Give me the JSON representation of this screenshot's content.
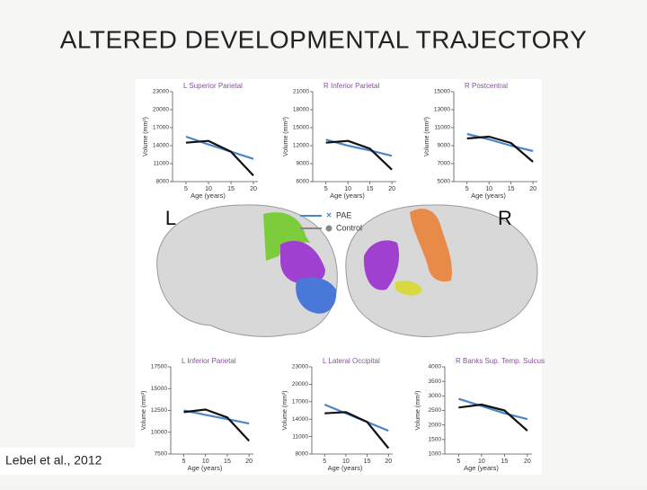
{
  "slide": {
    "title": "ALTERED DEVELOPMENTAL TRAJECTORY",
    "caption": "Lebel et al., 2012"
  },
  "figure": {
    "left_label": "L",
    "right_label": "R",
    "legend": [
      {
        "label": "PAE",
        "color": "#4a86c8"
      },
      {
        "label": "Control",
        "color": "#888888"
      }
    ],
    "panels": [
      {
        "title": "L Superior Parietal",
        "xlabel": "Age (years)",
        "ylabel": "Volume (mm³)",
        "xlim": [
          2,
          21
        ],
        "xticks": [
          5,
          10,
          15,
          20
        ],
        "ylim": [
          8000,
          23000
        ],
        "yticks": [
          8000,
          11000,
          14000,
          17000,
          20000,
          23000
        ],
        "x": [
          5,
          10,
          15,
          20
        ],
        "series": [
          {
            "color": "#4a86c8",
            "values": [
              15500,
              14200,
              13000,
              11800
            ]
          },
          {
            "color": "#111111",
            "values": [
              14500,
              14800,
              13000,
              9000
            ]
          }
        ]
      },
      {
        "title": "R Inferior Parietal",
        "xlabel": "Age (years)",
        "ylabel": "Volume (mm³)",
        "xlim": [
          2,
          21
        ],
        "xticks": [
          5,
          10,
          15,
          20
        ],
        "ylim": [
          6000,
          21000
        ],
        "yticks": [
          6000,
          9000,
          12000,
          15000,
          18000,
          21000
        ],
        "x": [
          5,
          10,
          15,
          20
        ],
        "series": [
          {
            "color": "#4a86c8",
            "values": [
              13000,
              12000,
              11200,
              10300
            ]
          },
          {
            "color": "#111111",
            "values": [
              12500,
              12800,
              11500,
              8000
            ]
          }
        ]
      },
      {
        "title": "R Postcentral",
        "xlabel": "Age (years)",
        "ylabel": "Volume (mm³)",
        "xlim": [
          2,
          21
        ],
        "xticks": [
          5,
          10,
          15,
          20
        ],
        "ylim": [
          5000,
          15000
        ],
        "yticks": [
          5000,
          7000,
          9000,
          11000,
          13000,
          15000
        ],
        "x": [
          5,
          10,
          15,
          20
        ],
        "series": [
          {
            "color": "#4a86c8",
            "values": [
              10300,
              9700,
              9000,
              8400
            ]
          },
          {
            "color": "#111111",
            "values": [
              9800,
              10000,
              9300,
              7200
            ]
          }
        ]
      },
      {
        "title": "L Inferior Parietal",
        "xlabel": "Age (years)",
        "ylabel": "Volume (mm³)",
        "xlim": [
          2,
          21
        ],
        "xticks": [
          5,
          10,
          15,
          20
        ],
        "ylim": [
          7500,
          17500
        ],
        "yticks": [
          7500,
          10000,
          12500,
          15000,
          17500
        ],
        "x": [
          5,
          10,
          15,
          20
        ],
        "series": [
          {
            "color": "#4a86c8",
            "values": [
              12500,
              12000,
              11500,
              11000
            ]
          },
          {
            "color": "#111111",
            "values": [
              12300,
              12600,
              11700,
              9000
            ]
          }
        ]
      },
      {
        "title": "L Lateral Occipital",
        "xlabel": "Age (years)",
        "ylabel": "Volume (mm³)",
        "xlim": [
          2,
          21
        ],
        "xticks": [
          5,
          10,
          15,
          20
        ],
        "ylim": [
          8000,
          23000
        ],
        "yticks": [
          8000,
          11000,
          14000,
          17000,
          20000,
          23000
        ],
        "x": [
          5,
          10,
          15,
          20
        ],
        "series": [
          {
            "color": "#4a86c8",
            "values": [
              16500,
              15000,
              13500,
              12000
            ]
          },
          {
            "color": "#111111",
            "values": [
              15000,
              15200,
              13500,
              9000
            ]
          }
        ]
      },
      {
        "title": "R Banks Sup. Temp. Sulcus",
        "xlabel": "Age (years)",
        "ylabel": "Volume (mm³)",
        "xlim": [
          2,
          21
        ],
        "xticks": [
          5,
          10,
          15,
          20
        ],
        "ylim": [
          1000,
          4000
        ],
        "yticks": [
          1000,
          1500,
          2000,
          2500,
          3000,
          3500,
          4000
        ],
        "x": [
          5,
          10,
          15,
          20
        ],
        "series": [
          {
            "color": "#4a86c8",
            "values": [
              2900,
              2650,
              2400,
              2200
            ]
          },
          {
            "color": "#111111",
            "values": [
              2600,
              2700,
              2500,
              1800
            ]
          }
        ]
      }
    ]
  }
}
